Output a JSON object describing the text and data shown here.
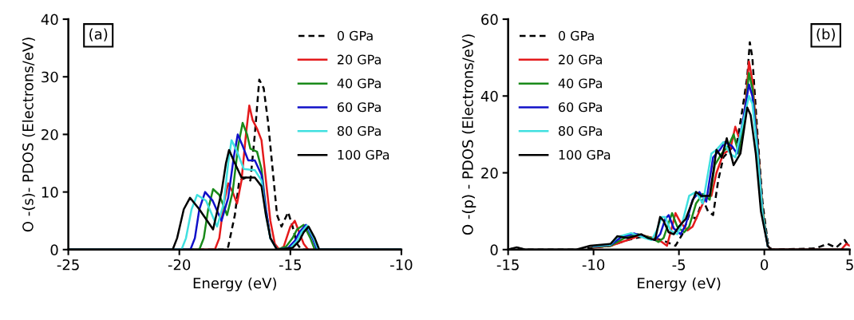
{
  "chart_data": [
    {
      "type": "line",
      "xlabel": "Energy (eV)",
      "ylabel": "O -(s)- PDOS (Electrons/eV)",
      "xlim": [
        -25,
        -10
      ],
      "xticks": [
        -25,
        -20,
        -15,
        -10
      ],
      "ylim": [
        0,
        40
      ],
      "yticks": [
        0,
        10,
        20,
        30,
        40
      ],
      "grid": false,
      "legend": "top right",
      "annotations": [
        "(a)"
      ],
      "series": [
        {
          "name": "0 GPa",
          "color": "#000000",
          "line_style": "dashed",
          "x": [
            -25,
            -18.0,
            -17.8,
            -17.5,
            -17.3,
            -17.0,
            -16.8,
            -16.6,
            -16.4,
            -16.2,
            -16.0,
            -15.8,
            -15.6,
            -15.4,
            -15.1,
            -14.9,
            -14.7,
            -14.5,
            -10
          ],
          "values": [
            0,
            0,
            0.5,
            6,
            12,
            12.5,
            12,
            20,
            29.5,
            28,
            22,
            14,
            6,
            4,
            6.5,
            4,
            1,
            0,
            0
          ]
        },
        {
          "name": "20 GPa",
          "color": "#e41a1c",
          "line_style": "solid",
          "x": [
            -25,
            -18.4,
            -18.2,
            -18.0,
            -17.8,
            -17.6,
            -17.4,
            -17.2,
            -17.0,
            -16.85,
            -16.7,
            -16.5,
            -16.3,
            -16.1,
            -15.9,
            -15.7,
            -15.5,
            -15.3,
            -15.0,
            -14.8,
            -14.6,
            -14.4,
            -14.2,
            -10
          ],
          "values": [
            0,
            0,
            2,
            8,
            11.5,
            10,
            8,
            12,
            20,
            25,
            22.5,
            21,
            19,
            12,
            5,
            1,
            0,
            0.5,
            4,
            5,
            3,
            1,
            0,
            0
          ]
        },
        {
          "name": "40 GPa",
          "color": "#1a8a1a",
          "line_style": "solid",
          "x": [
            -25,
            -19.1,
            -18.9,
            -18.7,
            -18.48,
            -18.2,
            -17.85,
            -17.6,
            -17.35,
            -17.15,
            -16.95,
            -16.8,
            -16.5,
            -16.3,
            -16.1,
            -15.9,
            -15.6,
            -15.2,
            -14.9,
            -14.7,
            -14.4,
            -14.1,
            -13.9,
            -10
          ],
          "values": [
            0,
            0,
            2,
            7,
            10.5,
            9.5,
            6,
            10,
            18,
            22,
            20,
            17.5,
            17,
            14,
            7,
            2,
            0,
            0.5,
            2,
            3.5,
            4.3,
            2,
            0,
            0
          ]
        },
        {
          "name": "60 GPa",
          "color": "#1010c8",
          "line_style": "solid",
          "x": [
            -25,
            -19.5,
            -19.3,
            -19.1,
            -18.84,
            -18.5,
            -18.1,
            -17.8,
            -17.55,
            -17.37,
            -17.15,
            -16.9,
            -16.6,
            -16.3,
            -16.1,
            -15.9,
            -15.6,
            -15.1,
            -14.8,
            -14.6,
            -14.3,
            -14.0,
            -13.8,
            -10
          ],
          "values": [
            0,
            0,
            2,
            7,
            10,
            8.5,
            5,
            9,
            16,
            20,
            18,
            15.5,
            15.5,
            13,
            7,
            2,
            0,
            0.3,
            1.5,
            3,
            4.3,
            2,
            0,
            0
          ]
        },
        {
          "name": "80 GPa",
          "color": "#40e0e0",
          "line_style": "solid",
          "x": [
            -25,
            -19.9,
            -19.7,
            -19.45,
            -19.2,
            -18.8,
            -18.3,
            -18.0,
            -17.8,
            -17.65,
            -17.4,
            -17.1,
            -16.6,
            -16.3,
            -16.1,
            -15.9,
            -15.6,
            -15.0,
            -14.7,
            -14.5,
            -14.25,
            -13.95,
            -13.75,
            -10
          ],
          "values": [
            0,
            0,
            2,
            7,
            9.5,
            8.5,
            4,
            8,
            15,
            19,
            17,
            14,
            13.8,
            12,
            6,
            2,
            0,
            0.3,
            1.5,
            3,
            4.2,
            2,
            0,
            0
          ]
        },
        {
          "name": "100 GPa",
          "color": "#000000",
          "line_style": "solid",
          "x": [
            -25,
            -20.3,
            -20.1,
            -19.8,
            -19.52,
            -19.1,
            -18.48,
            -18.1,
            -17.9,
            -17.76,
            -17.5,
            -17.2,
            -16.6,
            -16.3,
            -16.1,
            -15.9,
            -15.6,
            -14.9,
            -14.6,
            -14.4,
            -14.18,
            -13.9,
            -13.7,
            -10
          ],
          "values": [
            0,
            0,
            2,
            7,
            9,
            7,
            3.5,
            10,
            15,
            17.3,
            15,
            12.5,
            12.5,
            11,
            6,
            2,
            0,
            0.3,
            1.5,
            3,
            4,
            2,
            0,
            0
          ]
        }
      ]
    },
    {
      "type": "line",
      "xlabel": "Energy (eV)",
      "ylabel": "O -(p) - PDOS (Electrons/eV)",
      "xlim": [
        -15,
        5
      ],
      "xticks": [
        -15,
        -10,
        -5,
        0,
        5
      ],
      "ylim": [
        0,
        60
      ],
      "yticks": [
        0,
        20,
        40,
        60
      ],
      "grid": false,
      "legend": "top left",
      "annotations": [
        "(b)"
      ],
      "series": [
        {
          "name": "0 GPa",
          "color": "#000000",
          "line_style": "dashed",
          "x": [
            -15,
            -14.5,
            -14,
            -11,
            -10,
            -9,
            -8,
            -7,
            -6,
            -5.2,
            -4.8,
            -4.4,
            -4,
            -3.6,
            -3.3,
            -3.0,
            -2.7,
            -2.4,
            -2.0,
            -1.6,
            -1.3,
            -1.0,
            -0.85,
            -0.7,
            -0.4,
            -0.1,
            0.2,
            0.4,
            3,
            3.7,
            4.2,
            4.7,
            5
          ],
          "values": [
            0,
            0.5,
            0,
            0,
            0.5,
            1,
            2.5,
            3.5,
            2.5,
            1,
            4,
            9,
            8,
            13,
            10,
            9,
            18,
            24,
            26,
            28,
            36,
            45,
            54,
            50,
            30,
            12,
            2,
            0,
            0.3,
            1.5,
            0.5,
            2.5,
            0.5
          ]
        },
        {
          "name": "20 GPa",
          "color": "#e41a1c",
          "line_style": "solid",
          "x": [
            -10,
            -9,
            -8,
            -7.2,
            -6.5,
            -6,
            -5.7,
            -5.4,
            -5.2,
            -4.9,
            -4.5,
            -4.2,
            -3.8,
            -3.4,
            -3.1,
            -2.8,
            -2.4,
            -2.0,
            -1.7,
            -1.4,
            -1.1,
            -0.9,
            -0.7,
            -0.4,
            -0.1,
            0.2,
            0.4,
            4.5,
            4.8,
            5
          ],
          "values": [
            0.5,
            1,
            2.5,
            3.8,
            3,
            2,
            1,
            6,
            9.5,
            7,
            5,
            6,
            10,
            14,
            14,
            20,
            25,
            26,
            32,
            28,
            38,
            49,
            44,
            28,
            10,
            1,
            0,
            0,
            1.5,
            1
          ]
        },
        {
          "name": "40 GPa",
          "color": "#1a8a1a",
          "line_style": "solid",
          "x": [
            -10,
            -9,
            -8.2,
            -7.4,
            -6.6,
            -6.2,
            -5.9,
            -5.6,
            -5.4,
            -5.1,
            -4.7,
            -4.4,
            -4.0,
            -3.6,
            -3.2,
            -2.9,
            -2.5,
            -2.1,
            -1.8,
            -1.5,
            -1.1,
            -0.9,
            -0.7,
            -0.4,
            -0.1,
            0.2
          ],
          "values": [
            0.7,
            1,
            3,
            4,
            3,
            2,
            3,
            7,
            9.5,
            6,
            4.5,
            6,
            12,
            14.5,
            13,
            22,
            25,
            27,
            30,
            25,
            37,
            46,
            42,
            27,
            10,
            1
          ]
        },
        {
          "name": "60 GPa",
          "color": "#1010c8",
          "line_style": "solid",
          "x": [
            -10,
            -9,
            -8.4,
            -7.6,
            -6.8,
            -6.4,
            -6.1,
            -5.8,
            -5.6,
            -5.3,
            -4.9,
            -4.6,
            -4.2,
            -3.8,
            -3.4,
            -3.0,
            -2.6,
            -2.3,
            -1.9,
            -1.6,
            -1.2,
            -0.9,
            -0.7,
            -0.4,
            -0.1,
            0.2
          ],
          "values": [
            0.8,
            1.2,
            3.2,
            4.2,
            3,
            2.5,
            4,
            8,
            9,
            5.5,
            4,
            6.5,
            13,
            15,
            12.5,
            24,
            26,
            28,
            27,
            25,
            35,
            43,
            40,
            26,
            9,
            1
          ]
        },
        {
          "name": "80 GPa",
          "color": "#40e0e0",
          "line_style": "solid",
          "x": [
            -10,
            -9,
            -8.6,
            -7.8,
            -7.0,
            -6.6,
            -6.3,
            -6.0,
            -5.8,
            -5.5,
            -5.1,
            -4.8,
            -4.4,
            -4.0,
            -3.6,
            -3.1,
            -2.8,
            -2.4,
            -2.0,
            -1.7,
            -1.3,
            -0.9,
            -0.7,
            -0.4,
            -0.1,
            0.2
          ],
          "values": [
            0.9,
            1.3,
            3.3,
            4.3,
            3,
            2.5,
            5,
            8.5,
            8.5,
            5,
            4,
            7,
            14,
            15,
            12,
            25,
            26,
            28,
            25,
            24,
            32,
            40,
            38,
            25,
            9,
            1
          ]
        },
        {
          "name": "100 GPa",
          "color": "#000000",
          "line_style": "solid",
          "x": [
            -15,
            -14.5,
            -14,
            -11,
            -10.2,
            -9,
            -8.6,
            -8.0,
            -7.2,
            -6.8,
            -6.4,
            -6.1,
            -5.9,
            -5.6,
            -5.3,
            -5.0,
            -4.6,
            -4.0,
            -3.7,
            -3.2,
            -2.8,
            -2.5,
            -2.2,
            -1.8,
            -1.4,
            -1.0,
            -0.8,
            -0.5,
            -0.2,
            0.2,
            0.4,
            5
          ],
          "values": [
            0,
            0.6,
            0,
            0,
            1,
            1.5,
            3.5,
            3,
            4,
            3,
            2.5,
            8.5,
            7.5,
            4.5,
            4,
            6,
            8,
            15,
            14,
            14,
            26,
            24,
            29,
            22,
            25,
            37,
            35,
            25,
            10,
            1,
            0,
            0
          ]
        }
      ]
    }
  ]
}
